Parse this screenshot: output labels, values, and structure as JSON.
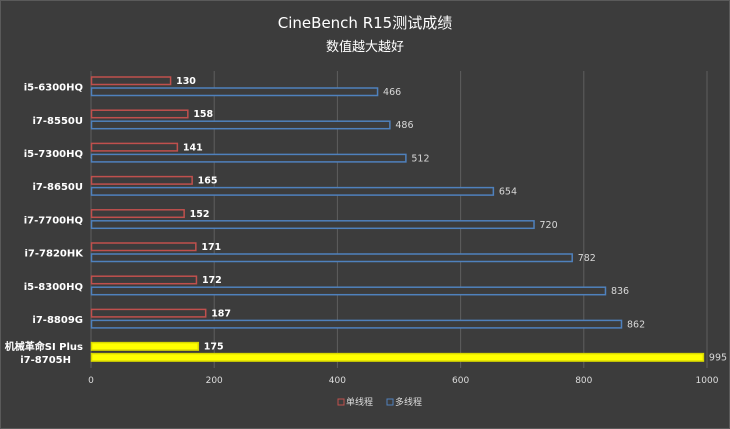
{
  "chart_data": {
    "type": "bar",
    "orientation": "horizontal",
    "title": "CineBench R15测试成绩",
    "subtitle": "数值越大越好",
    "categories": [
      "i5-6300HQ",
      "i7-8550U",
      "i5-7300HQ",
      "i7-8650U",
      "i7-7700HQ",
      "i7-7820HK",
      "i5-8300HQ",
      "i7-8809G",
      "机械革命SI Plus\ni7-8705H"
    ],
    "series": [
      {
        "name": "单线程",
        "values": [
          130,
          158,
          141,
          165,
          152,
          171,
          172,
          187,
          175
        ]
      },
      {
        "name": "多线程",
        "values": [
          466,
          486,
          512,
          654,
          720,
          782,
          836,
          862,
          995
        ]
      }
    ],
    "highlight_index": 8,
    "xlim": [
      0,
      1000
    ],
    "x_ticks": [
      0,
      200,
      400,
      600,
      800,
      1000
    ],
    "grid": true,
    "legend_position": "bottom",
    "colors": {
      "single_border": "#c0504d",
      "multi_border": "#4f81bd",
      "bar_fill": "#3c3c3c",
      "highlight_fill": "#ffff00",
      "highlight_border": "#d8d800",
      "background": "#3c3c3c",
      "grid": "#5e5e5e",
      "text": "#ffffff",
      "value_single": "#ffffff",
      "value_multi": "#d8d8d8"
    }
  }
}
